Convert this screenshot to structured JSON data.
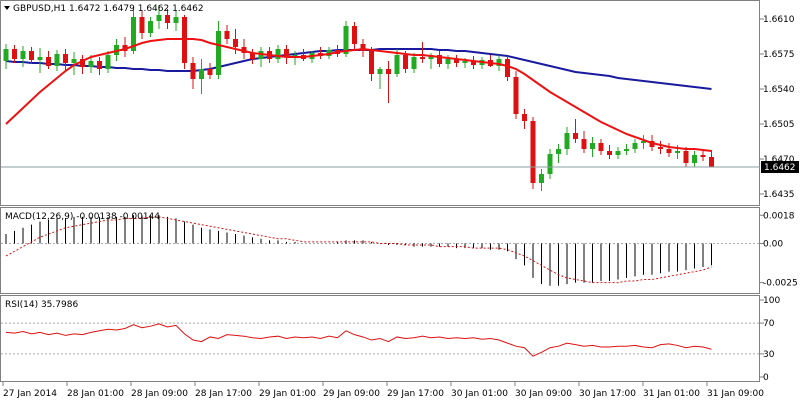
{
  "chart_data": [
    {
      "type": "candlestick",
      "title": "GBPUSD,H1  1.6472 1.6479 1.6462 1.6462",
      "symbol": "GBPUSD",
      "timeframe": "H1",
      "last_price_label": "1.6462",
      "last_price": 1.6462,
      "y_ticks": [
        "1.6610",
        "1.6575",
        "1.6540",
        "1.6505",
        "1.6470",
        "1.6435"
      ],
      "ylim": [
        1.6425,
        1.6627
      ],
      "colors": {
        "bull": "#22aa22",
        "bear": "#dd1111",
        "fast_ma": "#ee1111",
        "slow_ma": "#1a1aa0",
        "price_line": "#8aa0a0"
      },
      "candles": [
        [
          1.6568,
          1.6585,
          1.656,
          1.658
        ],
        [
          1.658,
          1.6584,
          1.6566,
          1.657
        ],
        [
          1.657,
          1.6583,
          1.6562,
          1.6578
        ],
        [
          1.6578,
          1.6582,
          1.6565,
          1.6569
        ],
        [
          1.6569,
          1.6581,
          1.6556,
          1.6572
        ],
        [
          1.6572,
          1.6578,
          1.656,
          1.6563
        ],
        [
          1.6563,
          1.6579,
          1.6558,
          1.6575
        ],
        [
          1.6575,
          1.658,
          1.6557,
          1.6566
        ],
        [
          1.6566,
          1.6577,
          1.6554,
          1.657
        ],
        [
          1.657,
          1.6574,
          1.6555,
          1.6562
        ],
        [
          1.6562,
          1.6574,
          1.6556,
          1.6568
        ],
        [
          1.6568,
          1.6572,
          1.6554,
          1.656
        ],
        [
          1.656,
          1.6578,
          1.6556,
          1.6574
        ],
        [
          1.6574,
          1.659,
          1.6568,
          1.6584
        ],
        [
          1.6584,
          1.6592,
          1.6572,
          1.6578
        ],
        [
          1.6578,
          1.662,
          1.6575,
          1.6612
        ],
        [
          1.6612,
          1.6618,
          1.659,
          1.6596
        ],
        [
          1.6596,
          1.6612,
          1.6592,
          1.6608
        ],
        [
          1.6608,
          1.6624,
          1.66,
          1.6614
        ],
        [
          1.6614,
          1.662,
          1.66,
          1.6606
        ],
        [
          1.6606,
          1.6618,
          1.6598,
          1.6612
        ],
        [
          1.6612,
          1.6614,
          1.656,
          1.6566
        ],
        [
          1.6566,
          1.6572,
          1.654,
          1.655
        ],
        [
          1.655,
          1.657,
          1.6535,
          1.656
        ],
        [
          1.656,
          1.6566,
          1.655,
          1.6554
        ],
        [
          1.6554,
          1.6608,
          1.655,
          1.6598
        ],
        [
          1.6598,
          1.6604,
          1.6585,
          1.659
        ],
        [
          1.659,
          1.66,
          1.6575,
          1.6582
        ],
        [
          1.6582,
          1.659,
          1.657,
          1.6576
        ],
        [
          1.6576,
          1.658,
          1.6565,
          1.657
        ],
        [
          1.657,
          1.6582,
          1.6562,
          1.6578
        ],
        [
          1.6578,
          1.6582,
          1.6566,
          1.657
        ],
        [
          1.657,
          1.6584,
          1.6566,
          1.658
        ],
        [
          1.658,
          1.6584,
          1.6565,
          1.6572
        ],
        [
          1.6572,
          1.6578,
          1.6564,
          1.6574
        ],
        [
          1.6574,
          1.658,
          1.6568,
          1.657
        ],
        [
          1.657,
          1.6578,
          1.6566,
          1.6576
        ],
        [
          1.6576,
          1.6582,
          1.657,
          1.6573
        ],
        [
          1.6573,
          1.6582,
          1.657,
          1.6579
        ],
        [
          1.6579,
          1.6584,
          1.6572,
          1.6575
        ],
        [
          1.6575,
          1.6608,
          1.6572,
          1.6603
        ],
        [
          1.6603,
          1.6607,
          1.658,
          1.6585
        ],
        [
          1.6585,
          1.659,
          1.6572,
          1.6578
        ],
        [
          1.6578,
          1.6582,
          1.6548,
          1.6555
        ],
        [
          1.6555,
          1.6562,
          1.654,
          1.656
        ],
        [
          1.656,
          1.6568,
          1.6526,
          1.6555
        ],
        [
          1.6555,
          1.658,
          1.6552,
          1.6574
        ],
        [
          1.6574,
          1.6578,
          1.6556,
          1.656
        ],
        [
          1.656,
          1.6576,
          1.6556,
          1.6572
        ],
        [
          1.6572,
          1.6587,
          1.6566,
          1.657
        ],
        [
          1.657,
          1.6576,
          1.656,
          1.6574
        ],
        [
          1.6574,
          1.6578,
          1.6562,
          1.6565
        ],
        [
          1.6565,
          1.6574,
          1.656,
          1.657
        ],
        [
          1.657,
          1.6574,
          1.6562,
          1.6566
        ],
        [
          1.6566,
          1.6571,
          1.6561,
          1.6568
        ],
        [
          1.6568,
          1.6573,
          1.656,
          1.6564
        ],
        [
          1.6564,
          1.6572,
          1.656,
          1.6569
        ],
        [
          1.6569,
          1.6574,
          1.6562,
          1.6563
        ],
        [
          1.6563,
          1.6574,
          1.6558,
          1.657
        ],
        [
          1.657,
          1.6573,
          1.6548,
          1.6552
        ],
        [
          1.6552,
          1.6558,
          1.651,
          1.6515
        ],
        [
          1.6515,
          1.652,
          1.65,
          1.6508
        ],
        [
          1.6508,
          1.6512,
          1.644,
          1.6446
        ],
        [
          1.6446,
          1.646,
          1.6438,
          1.6455
        ],
        [
          1.6455,
          1.648,
          1.645,
          1.6475
        ],
        [
          1.6475,
          1.6485,
          1.6466,
          1.648
        ],
        [
          1.648,
          1.6502,
          1.6474,
          1.6496
        ],
        [
          1.6496,
          1.651,
          1.6486,
          1.649
        ],
        [
          1.649,
          1.6498,
          1.6476,
          1.648
        ],
        [
          1.648,
          1.6492,
          1.6472,
          1.6486
        ],
        [
          1.6486,
          1.649,
          1.6474,
          1.6478
        ],
        [
          1.6478,
          1.6484,
          1.647,
          1.6474
        ],
        [
          1.6474,
          1.6482,
          1.647,
          1.6478
        ],
        [
          1.6478,
          1.6485,
          1.6474,
          1.648
        ],
        [
          1.648,
          1.649,
          1.6476,
          1.6486
        ],
        [
          1.6486,
          1.6494,
          1.648,
          1.6488
        ],
        [
          1.6488,
          1.6494,
          1.6478,
          1.6482
        ],
        [
          1.6482,
          1.6488,
          1.6475,
          1.648
        ],
        [
          1.648,
          1.6486,
          1.6472,
          1.6476
        ],
        [
          1.6476,
          1.6484,
          1.647,
          1.6478
        ],
        [
          1.6478,
          1.6482,
          1.6462,
          1.6466
        ],
        [
          1.6466,
          1.6478,
          1.6462,
          1.6474
        ],
        [
          1.6474,
          1.648,
          1.6468,
          1.6472
        ],
        [
          1.6472,
          1.6479,
          1.6462,
          1.6462
        ]
      ],
      "fast_ma": [
        1.6505,
        1.6513,
        1.6521,
        1.6529,
        1.6537,
        1.6544,
        1.6551,
        1.6558,
        1.6564,
        1.6568,
        1.6572,
        1.6574,
        1.6576,
        1.6578,
        1.658,
        1.6583,
        1.6586,
        1.6588,
        1.6589,
        1.659,
        1.659,
        1.659,
        1.659,
        1.6589,
        1.6586,
        1.6584,
        1.6582,
        1.658,
        1.6578,
        1.6576,
        1.6575,
        1.6574,
        1.6573,
        1.6572,
        1.6572,
        1.6572,
        1.6573,
        1.6574,
        1.6575,
        1.6577,
        1.6578,
        1.6579,
        1.658,
        1.6579,
        1.6578,
        1.6577,
        1.6576,
        1.6575,
        1.6574,
        1.6574,
        1.6573,
        1.6572,
        1.6571,
        1.657,
        1.6569,
        1.6568,
        1.6567,
        1.6566,
        1.6565,
        1.6563,
        1.656,
        1.6555,
        1.6549,
        1.6543,
        1.6537,
        1.6532,
        1.6527,
        1.6522,
        1.6517,
        1.6512,
        1.6507,
        1.6503,
        1.6499,
        1.6495,
        1.6492,
        1.6489,
        1.6486,
        1.6484,
        1.6482,
        1.6481,
        1.648,
        1.648,
        1.6479,
        1.6478
      ],
      "slow_ma": [
        1.6568,
        1.6567,
        1.6567,
        1.6566,
        1.6566,
        1.6565,
        1.6565,
        1.6564,
        1.6564,
        1.6563,
        1.6563,
        1.6562,
        1.6562,
        1.6561,
        1.6561,
        1.656,
        1.656,
        1.6559,
        1.6559,
        1.6558,
        1.6558,
        1.6558,
        1.6558,
        1.6559,
        1.656,
        1.6562,
        1.6564,
        1.6566,
        1.6568,
        1.657,
        1.6571,
        1.6572,
        1.6573,
        1.6574,
        1.6575,
        1.6576,
        1.6577,
        1.6578,
        1.6578,
        1.6579,
        1.6579,
        1.6579,
        1.6579,
        1.6579,
        1.658,
        1.658,
        1.658,
        1.658,
        1.658,
        1.658,
        1.658,
        1.6579,
        1.6579,
        1.6578,
        1.6578,
        1.6577,
        1.6576,
        1.6575,
        1.6574,
        1.6573,
        1.6571,
        1.6569,
        1.6567,
        1.6565,
        1.6563,
        1.6561,
        1.6559,
        1.6557,
        1.6556,
        1.6555,
        1.6554,
        1.6553,
        1.6551,
        1.655,
        1.6549,
        1.6548,
        1.6547,
        1.6546,
        1.6545,
        1.6544,
        1.6543,
        1.6542,
        1.6541,
        1.654
      ]
    },
    {
      "type": "bar",
      "title": "MACD(12,26,9) -0.00138 -0.00144",
      "y_ticks": [
        "0.0018",
        "0.00",
        "-0.0025"
      ],
      "ylim": [
        -0.0031,
        0.0022
      ],
      "colors": {
        "histogram": "#000000",
        "signal": "#dd1111",
        "zero_line": "#aaaaaa"
      },
      "macd": [
        0.0006,
        0.0008,
        0.001,
        0.0012,
        0.0014,
        0.0015,
        0.0016,
        0.0016,
        0.0017,
        0.0017,
        0.0017,
        0.0017,
        0.0017,
        0.0017,
        0.0017,
        0.0018,
        0.0018,
        0.0018,
        0.0018,
        0.0017,
        0.0016,
        0.0014,
        0.0012,
        0.001,
        0.0009,
        0.0008,
        0.0007,
        0.0006,
        0.0005,
        0.0004,
        0.0003,
        0.0002,
        0.0002,
        0.0001,
        0.0001,
        0.0,
        0.0,
        0.0,
        0.0,
        0.0001,
        0.0002,
        0.0002,
        0.0002,
        0.0001,
        0.0,
        -0.0001,
        -0.0001,
        -0.0001,
        -0.0002,
        -0.0002,
        -0.0002,
        -0.0002,
        -0.0002,
        -0.0003,
        -0.0003,
        -0.0003,
        -0.0003,
        -0.0004,
        -0.0004,
        -0.0005,
        -0.001,
        -0.0014,
        -0.0022,
        -0.0026,
        -0.0027,
        -0.0027,
        -0.0026,
        -0.0025,
        -0.0025,
        -0.0025,
        -0.0024,
        -0.0024,
        -0.0023,
        -0.0022,
        -0.0021,
        -0.002,
        -0.002,
        -0.0019,
        -0.0018,
        -0.0018,
        -0.0017,
        -0.0016,
        -0.0015,
        -0.0014
      ],
      "signal": [
        -0.0008,
        -0.0005,
        -0.0002,
        0.0001,
        0.0004,
        0.0006,
        0.0008,
        0.001,
        0.0011,
        0.0012,
        0.0013,
        0.0014,
        0.0015,
        0.0015,
        0.0016,
        0.0016,
        0.0016,
        0.0017,
        0.0017,
        0.0016,
        0.0015,
        0.0014,
        0.0013,
        0.0012,
        0.0011,
        0.001,
        0.0009,
        0.0008,
        0.0007,
        0.0006,
        0.0005,
        0.0004,
        0.0003,
        0.0003,
        0.0002,
        0.0001,
        0.0001,
        0.0001,
        0.0001,
        0.0001,
        0.0001,
        0.0001,
        0.0001,
        0.0001,
        0.0,
        0.0,
        0.0,
        -0.0001,
        -0.0001,
        -0.0001,
        -0.0001,
        -0.0002,
        -0.0002,
        -0.0002,
        -0.0002,
        -0.0003,
        -0.0003,
        -0.0003,
        -0.0003,
        -0.0004,
        -0.0006,
        -0.0008,
        -0.0011,
        -0.0014,
        -0.0017,
        -0.002,
        -0.0022,
        -0.0023,
        -0.0024,
        -0.0025,
        -0.0025,
        -0.0025,
        -0.0025,
        -0.0024,
        -0.0024,
        -0.0023,
        -0.0023,
        -0.0022,
        -0.0021,
        -0.002,
        -0.0019,
        -0.0018,
        -0.0017,
        -0.0015
      ]
    },
    {
      "type": "line",
      "title": "RSI(14) 35.7986",
      "y_ticks": [
        "100",
        "70",
        "30",
        "0"
      ],
      "levels": [
        70,
        30
      ],
      "ylim": [
        0,
        100
      ],
      "colors": {
        "line": "#dd1111",
        "level": "#aaaaaa"
      },
      "rsi": [
        58,
        57,
        59,
        56,
        58,
        55,
        57,
        54,
        56,
        55,
        58,
        60,
        62,
        61,
        63,
        68,
        64,
        66,
        69,
        65,
        67,
        56,
        48,
        46,
        52,
        50,
        55,
        54,
        53,
        51,
        50,
        52,
        53,
        50,
        52,
        51,
        52,
        50,
        53,
        51,
        60,
        55,
        52,
        48,
        50,
        46,
        52,
        50,
        51,
        53,
        51,
        52,
        50,
        51,
        50,
        51,
        49,
        50,
        48,
        44,
        40,
        38,
        27,
        32,
        38,
        40,
        44,
        42,
        40,
        41,
        39,
        39,
        40,
        40,
        41,
        39,
        38,
        42,
        43,
        41,
        38,
        40,
        39,
        36
      ],
      "rsi_last": 35.7986
    }
  ],
  "x_axis_labels": [
    "27 Jan 2014",
    "28 Jan 01:00",
    "28 Jan 09:00",
    "28 Jan 17:00",
    "29 Jan 01:00",
    "29 Jan 09:00",
    "29 Jan 17:00",
    "30 Jan 01:00",
    "30 Jan 09:00",
    "30 Jan 17:00",
    "31 Jan 01:00",
    "31 Jan 09:00"
  ]
}
